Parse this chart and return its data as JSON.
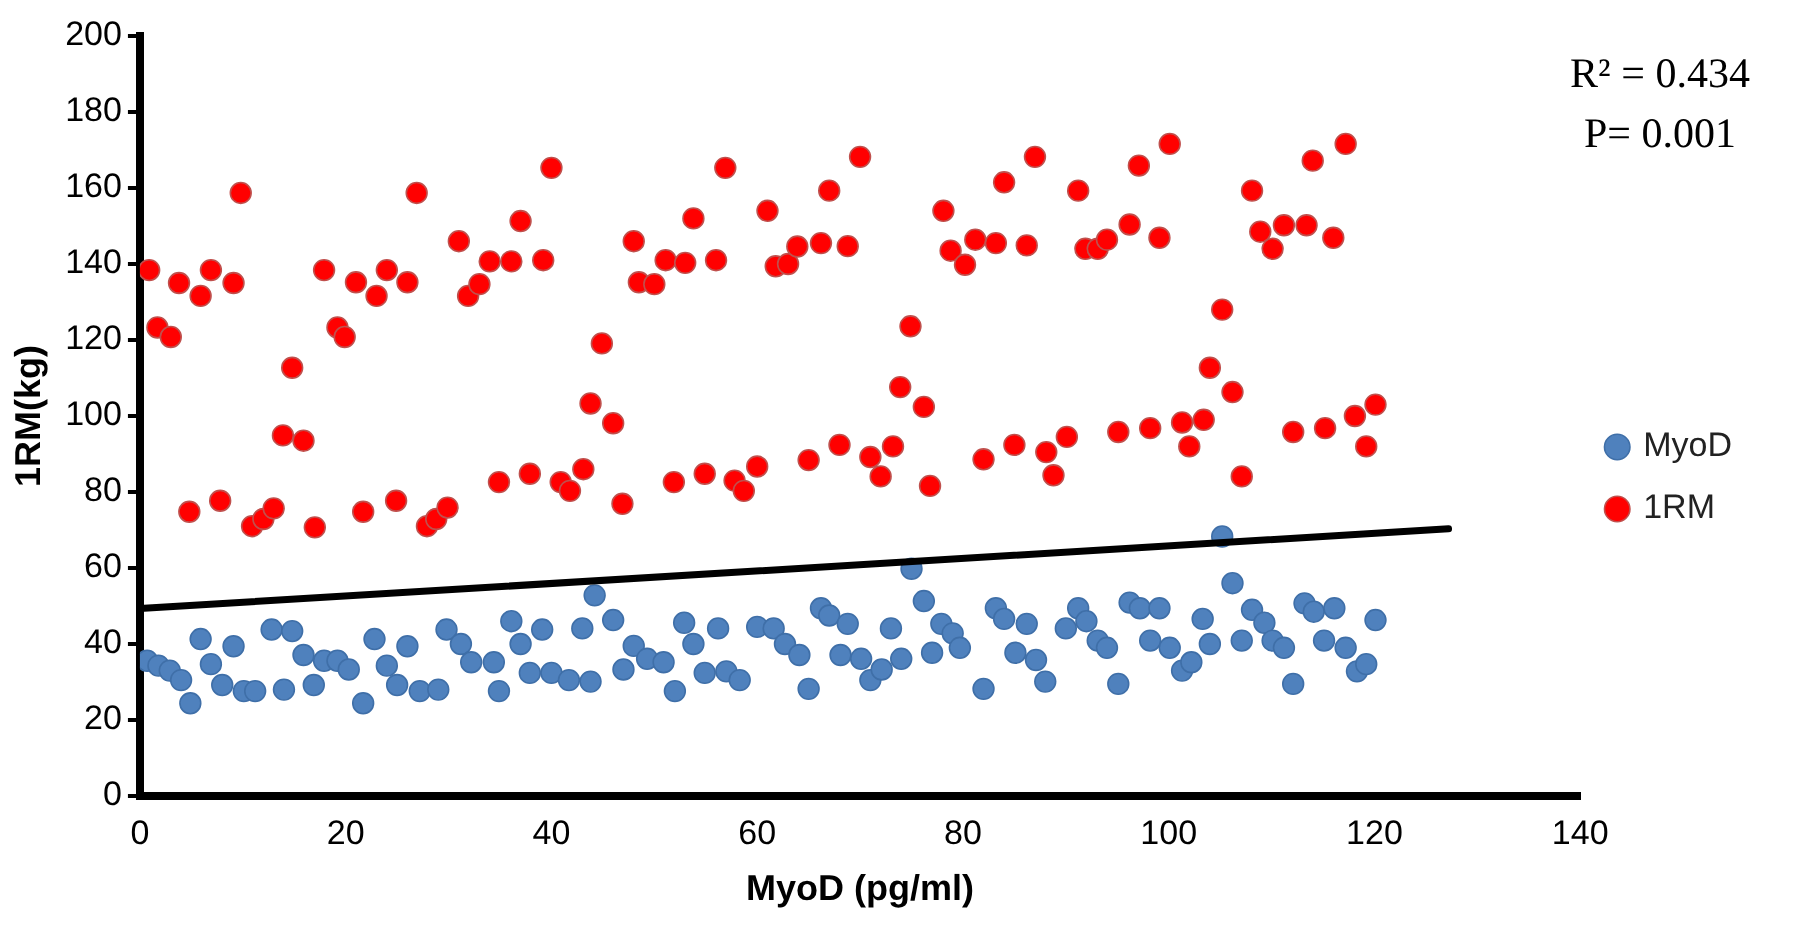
{
  "chart_data": {
    "type": "scatter",
    "xlabel": "MyoD (pg/ml)",
    "ylabel": "1RM(kg)",
    "annotations": [
      "R² = 0.434",
      "P= 0.001"
    ],
    "xlim": [
      0,
      140
    ],
    "ylim": [
      0,
      200
    ],
    "xticks": [
      0,
      20,
      40,
      60,
      80,
      100,
      120,
      140
    ],
    "yticks": [
      0,
      20,
      40,
      60,
      80,
      100,
      120,
      140,
      160,
      180,
      200
    ],
    "grid": false,
    "legend": "right",
    "marker": "circle",
    "series": [
      {
        "name": "MyoD",
        "color": "#4f81bd",
        "x": [
          0.7,
          1.8,
          2.9,
          4,
          4.9,
          5.9,
          6.9,
          8,
          9.1,
          10.1,
          11.2,
          12.8,
          14,
          14.8,
          15.9,
          16.9,
          17.9,
          19.2,
          20.3,
          21.7,
          22.8,
          24,
          25,
          26,
          27.2,
          29,
          29.8,
          31.2,
          32.2,
          34.4,
          34.9,
          36.1,
          37,
          37.9,
          39.1,
          40,
          41.7,
          43,
          43.8,
          44.2,
          46,
          47,
          48,
          49.3,
          50.9,
          52,
          52.9,
          53.8,
          54.9,
          56.2,
          57,
          58.3,
          60,
          61.6,
          62.7,
          64.1,
          65,
          66.2,
          67,
          68.1,
          68.8,
          70.1,
          71,
          72.1,
          73,
          74,
          75,
          76.2,
          77,
          77.9,
          79,
          79.7,
          82,
          83.2,
          84,
          85.1,
          86.2,
          87.1,
          88,
          90,
          91.2,
          92,
          93.1,
          94,
          95.1,
          96.2,
          97.2,
          98.2,
          99.1,
          100.1,
          101.3,
          102.2,
          103.3,
          104,
          105.2,
          106.2,
          107.1,
          108.1,
          109.3,
          110.1,
          111.2,
          112.1,
          113.2,
          114.1,
          115.1,
          116.1,
          117.2,
          118.3,
          119.2,
          120.1
        ],
        "values": [
          35.6,
          34.3,
          33,
          30.5,
          24.4,
          41.3,
          34.7,
          29.2,
          39.4,
          27.6,
          27.6,
          43.8,
          28,
          43.4,
          37.1,
          29.2,
          35.6,
          35.6,
          33.3,
          24.4,
          41.3,
          34.3,
          29.2,
          39.4,
          27.6,
          28,
          43.8,
          40,
          35.2,
          35.2,
          27.6,
          46,
          40,
          32.4,
          43.8,
          32.4,
          30.5,
          44.1,
          30.1,
          52.8,
          46.3,
          33.3,
          39.5,
          36.1,
          35.2,
          27.6,
          45.6,
          40,
          32.4,
          44.1,
          32.8,
          30.5,
          44.5,
          44.1,
          40,
          37.1,
          28.2,
          49.4,
          47.5,
          37.1,
          45.3,
          36.1,
          30.5,
          33.3,
          44.1,
          36.1,
          59.8,
          51.3,
          37.7,
          45.3,
          42.8,
          39,
          28.2,
          49.4,
          46.6,
          37.7,
          45.3,
          35.8,
          30.1,
          44.1,
          49.4,
          46,
          40.9,
          39,
          29.5,
          50.9,
          49.4,
          40.9,
          49.4,
          39,
          33,
          35.2,
          46.6,
          40,
          68.3,
          56,
          40.9,
          49,
          45.6,
          40.9,
          39,
          29.5,
          50.7,
          48.5,
          40.9,
          49.4,
          39,
          32.8,
          34.7,
          46.3
        ]
      },
      {
        "name": "1RM",
        "color": "#ff0000",
        "x": [
          0.9,
          1.7,
          3,
          3.8,
          4.8,
          5.9,
          6.9,
          7.8,
          9.1,
          9.8,
          10.9,
          12,
          13,
          13.9,
          14.8,
          15.9,
          17,
          17.9,
          19.2,
          19.9,
          21,
          21.7,
          23,
          24,
          24.9,
          26,
          26.9,
          27.9,
          28.8,
          29.9,
          31,
          31.9,
          33,
          34,
          34.9,
          36.1,
          37,
          37.9,
          39.2,
          40,
          40.9,
          41.8,
          43.1,
          43.8,
          44.9,
          46,
          46.9,
          48,
          48.5,
          50,
          51.1,
          51.9,
          53,
          53.8,
          54.9,
          56,
          56.9,
          57.8,
          58.7,
          60,
          61,
          61.8,
          63,
          63.9,
          65,
          66.2,
          67,
          68,
          68.8,
          70,
          71,
          72,
          73.2,
          73.9,
          74.9,
          76.2,
          76.8,
          78.1,
          78.8,
          80.2,
          81.2,
          82,
          83.2,
          84,
          85,
          86.2,
          87,
          88.1,
          88.8,
          90.1,
          91.2,
          91.9,
          93.1,
          94,
          95.1,
          96.2,
          97.1,
          98.2,
          99.1,
          100.1,
          101.3,
          102,
          103.4,
          104,
          105.2,
          106.2,
          107.1,
          108.1,
          108.9,
          110.1,
          111.2,
          112.1,
          113.4,
          114,
          115.2,
          116,
          117.2,
          118.1,
          119.2,
          120.1
        ],
        "values": [
          138.4,
          123.3,
          120.8,
          135,
          74.8,
          131.6,
          138.4,
          77.7,
          135,
          158.7,
          71,
          72.9,
          75.7,
          94.9,
          112.7,
          93.5,
          70.7,
          138.4,
          123.3,
          120.8,
          135.2,
          74.8,
          131.6,
          138.4,
          77.7,
          135.2,
          158.7,
          71,
          72.9,
          75.9,
          146,
          131.6,
          134.7,
          140.7,
          82.6,
          140.7,
          151.3,
          84.8,
          141,
          165.3,
          82.6,
          80.3,
          86,
          103.3,
          119.1,
          98.1,
          76.9,
          146,
          135.2,
          134.7,
          141,
          82.6,
          140.3,
          152,
          84.8,
          141,
          165.3,
          83,
          80.3,
          86.7,
          154,
          139.4,
          140,
          144.6,
          88.4,
          145.5,
          159.3,
          92.4,
          144.7,
          168.2,
          89.2,
          84.1,
          92,
          107.6,
          123.6,
          102.4,
          81.6,
          154,
          143.5,
          139.8,
          146.4,
          88.6,
          145.5,
          161.5,
          92.4,
          144.9,
          168.2,
          90.5,
          84.4,
          94.5,
          159.3,
          144,
          144,
          146.4,
          95.8,
          150.4,
          165.9,
          96.8,
          146.9,
          171.6,
          98.3,
          92,
          99,
          112.7,
          128,
          106.3,
          84.1,
          159.3,
          148.5,
          144,
          150.2,
          95.8,
          150.2,
          167.2,
          96.8,
          146.9,
          171.6,
          100,
          92,
          103
        ]
      },
      {
        "type": "line",
        "marker": "none",
        "color": "#000000",
        "x": [
          0.4,
          127.2
        ],
        "values": [
          49.4,
          70.3
        ]
      }
    ]
  }
}
